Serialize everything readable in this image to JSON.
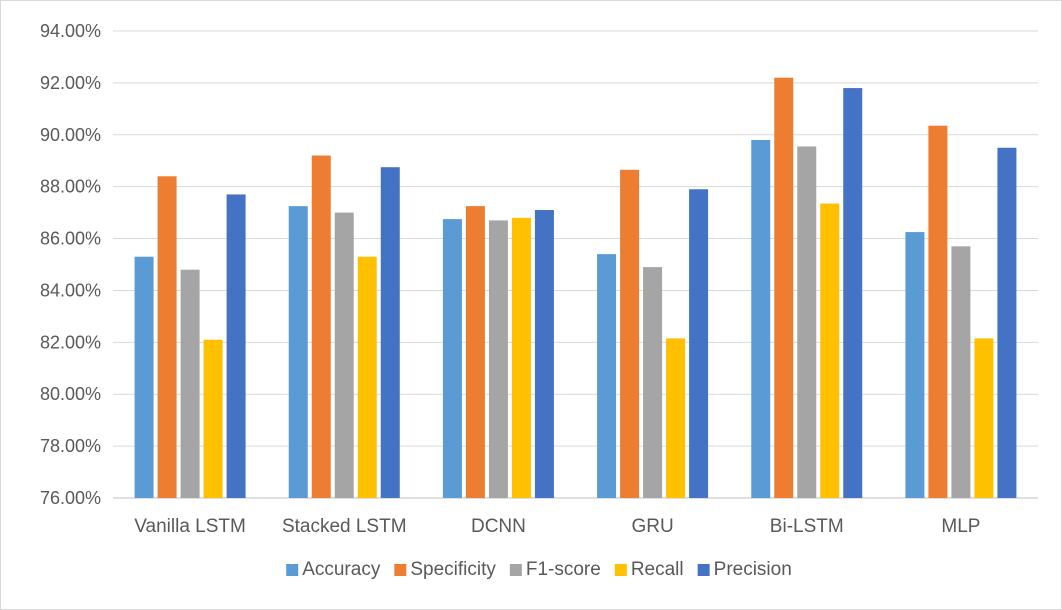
{
  "chart_data": {
    "type": "bar",
    "categories": [
      "Vanilla LSTM",
      "Stacked LSTM",
      "DCNN",
      "GRU",
      "Bi-LSTM",
      "MLP"
    ],
    "series": [
      {
        "name": "Accuracy",
        "color": "#5B9BD5",
        "values": [
          85.3,
          87.25,
          86.75,
          85.4,
          89.8,
          86.25
        ]
      },
      {
        "name": "Specificity",
        "color": "#ED7D31",
        "values": [
          88.4,
          89.2,
          87.25,
          88.65,
          92.2,
          90.35
        ]
      },
      {
        "name": "F1-score",
        "color": "#A5A5A5",
        "values": [
          84.8,
          87.0,
          86.7,
          84.9,
          89.55,
          85.7
        ]
      },
      {
        "name": "Recall",
        "color": "#FFC000",
        "values": [
          82.1,
          85.3,
          86.8,
          82.15,
          87.35,
          82.15
        ]
      },
      {
        "name": "Precision",
        "color": "#4472C4",
        "values": [
          87.7,
          88.75,
          87.1,
          87.9,
          91.8,
          89.5
        ]
      }
    ],
    "ylim": [
      76,
      94
    ],
    "yticks": [
      76,
      78,
      80,
      82,
      84,
      86,
      88,
      90,
      92,
      94
    ],
    "ytick_labels": [
      "76.00%",
      "78.00%",
      "80.00%",
      "82.00%",
      "84.00%",
      "86.00%",
      "88.00%",
      "90.00%",
      "92.00%",
      "94.00%"
    ],
    "grid": true,
    "legend_position": "bottom",
    "title": "",
    "xlabel": "",
    "ylabel": ""
  }
}
